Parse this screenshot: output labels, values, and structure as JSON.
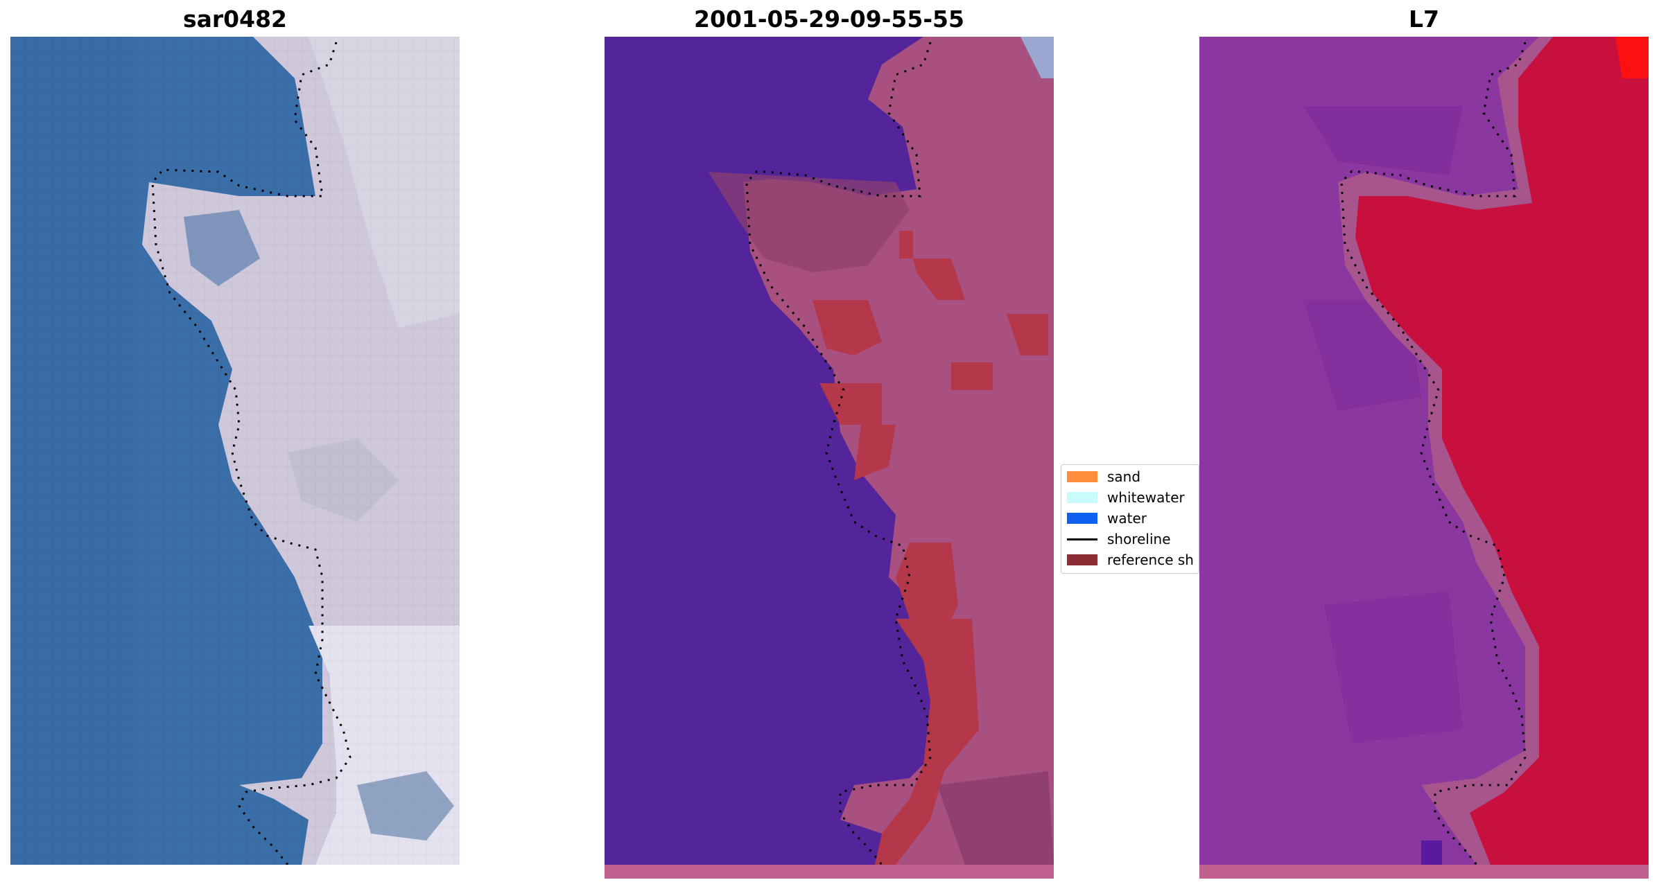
{
  "panels": [
    {
      "title": "sar0482",
      "kind": "rgb"
    },
    {
      "title": "2001-05-29-09-55-55",
      "kind": "classified"
    },
    {
      "title": "L7",
      "kind": "index"
    }
  ],
  "legend": {
    "items": [
      {
        "label": "sand",
        "color": "#ff8c3a",
        "type": "patch"
      },
      {
        "label": "whitewater",
        "color": "#c8fbfb",
        "type": "patch"
      },
      {
        "label": "water",
        "color": "#1060f0",
        "type": "patch"
      },
      {
        "label": "shoreline",
        "color": "#000000",
        "type": "line"
      },
      {
        "label": "reference sh",
        "color": "#8c2d35",
        "type": "patch"
      }
    ]
  },
  "colors": {
    "rgb_water": "#3a6ea8",
    "rgb_land": "#cfc8da",
    "class_water": "#54249a",
    "class_land": "#a8507f",
    "class_reference": "#b5374a",
    "index_water": "#8a37a0",
    "index_land": "#c8103e",
    "bottom_strip": "#c06090"
  }
}
